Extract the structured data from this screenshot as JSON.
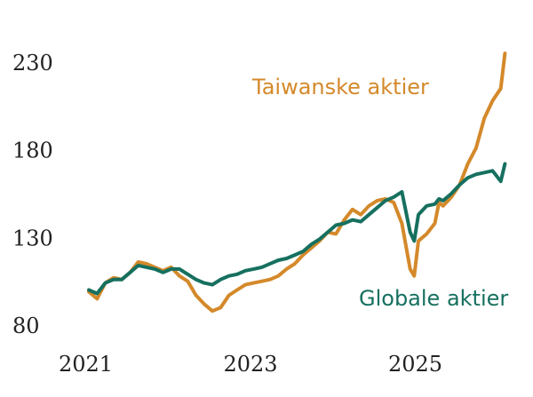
{
  "chart_data": {
    "type": "line",
    "title": "",
    "xlabel": "",
    "ylabel": "",
    "ylim": [
      80,
      240
    ],
    "yticks": [
      "230",
      "180",
      "130",
      "80"
    ],
    "xticks": [
      "2021",
      "2023",
      "2025"
    ],
    "xlim": [
      2021.0,
      2026.1
    ],
    "grid": false,
    "series": [
      {
        "name": "Taiwanske aktier",
        "color": "#D4892A",
        "x": [
          2021.0,
          2021.1,
          2021.2,
          2021.3,
          2021.4,
          2021.5,
          2021.6,
          2021.7,
          2021.8,
          2021.9,
          2022.0,
          2022.1,
          2022.2,
          2022.3,
          2022.4,
          2022.5,
          2022.6,
          2022.7,
          2022.8,
          2022.9,
          2023.0,
          2023.1,
          2023.2,
          2023.3,
          2023.4,
          2023.5,
          2023.6,
          2023.7,
          2023.8,
          2023.9,
          2024.0,
          2024.1,
          2024.2,
          2024.3,
          2024.4,
          2024.5,
          2024.6,
          2024.7,
          2024.8,
          2024.9,
          2024.95,
          2025.0,
          2025.1,
          2025.2,
          2025.25,
          2025.3,
          2025.4,
          2025.5,
          2025.6,
          2025.7,
          2025.8,
          2025.9,
          2026.0,
          2026.05
        ],
        "values": [
          99,
          95,
          104,
          107,
          106,
          110,
          116,
          115,
          113,
          111,
          113,
          108,
          105,
          97,
          92,
          88,
          90,
          97,
          100,
          103,
          104,
          105,
          106,
          108,
          112,
          115,
          120,
          124,
          128,
          133,
          132,
          140,
          146,
          143,
          148,
          151,
          152,
          150,
          138,
          112,
          108,
          128,
          132,
          138,
          150,
          148,
          153,
          160,
          172,
          181,
          198,
          208,
          215,
          235
        ]
      },
      {
        "name": "Globale aktier",
        "color": "#16705F",
        "x": [
          2021.0,
          2021.1,
          2021.2,
          2021.3,
          2021.4,
          2021.5,
          2021.6,
          2021.7,
          2021.8,
          2021.9,
          2022.0,
          2022.1,
          2022.2,
          2022.3,
          2022.4,
          2022.5,
          2022.6,
          2022.7,
          2022.8,
          2022.9,
          2023.0,
          2023.1,
          2023.2,
          2023.3,
          2023.4,
          2023.5,
          2023.6,
          2023.7,
          2023.8,
          2023.9,
          2024.0,
          2024.1,
          2024.2,
          2024.3,
          2024.4,
          2024.5,
          2024.6,
          2024.7,
          2024.8,
          2024.9,
          2024.95,
          2025.0,
          2025.1,
          2025.2,
          2025.25,
          2025.3,
          2025.4,
          2025.5,
          2025.6,
          2025.7,
          2025.8,
          2025.9,
          2026.0,
          2026.05
        ],
        "values": [
          100,
          98,
          104,
          106,
          106,
          110,
          114,
          113,
          112,
          110,
          112,
          112,
          109,
          106,
          104,
          103,
          106,
          108,
          109,
          111,
          112,
          113,
          115,
          117,
          118,
          120,
          122,
          126,
          129,
          133,
          137,
          138,
          140,
          139,
          143,
          147,
          151,
          153,
          156,
          133,
          128,
          143,
          148,
          149,
          152,
          151,
          155,
          160,
          164,
          166,
          167,
          168,
          162,
          172
        ]
      }
    ],
    "annotations": [
      "Taiwanske aktier",
      "Globale aktier"
    ]
  }
}
